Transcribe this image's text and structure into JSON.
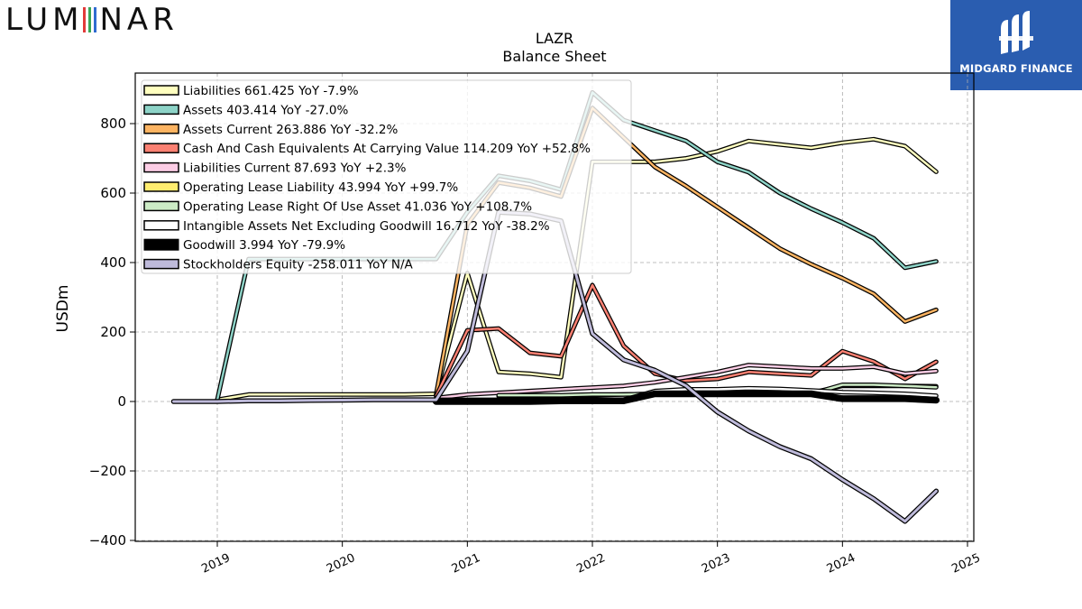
{
  "header": {
    "logo_left": "LUMINAR",
    "logo_right": "MIDGARD FINANCE"
  },
  "colors": {
    "logo_i": [
      "#e23a3a",
      "#3aa655",
      "#2f6bd0"
    ],
    "brand_bg": "#2a5db0"
  },
  "chart_data": {
    "type": "line",
    "title": "LAZR",
    "subtitle": "Balance  Sheet",
    "ylabel": "USDm",
    "xlabel": "",
    "ylim": [
      -400,
      920
    ],
    "xlim": [
      2018.6,
      2025.05
    ],
    "yticks": [
      -400,
      -200,
      0,
      200,
      400,
      600,
      800
    ],
    "ytick_labels": [
      "−400",
      "−200",
      "0",
      "200",
      "400",
      "600",
      "800"
    ],
    "xticks": [
      2019,
      2020,
      2021,
      2022,
      2023,
      2024,
      2025
    ],
    "xtick_labels": [
      "2019",
      "2020",
      "2021",
      "2022",
      "2023",
      "2024",
      "2025"
    ],
    "grid": true,
    "legend_position": "top-left",
    "series": [
      {
        "name": "Liabilities",
        "legend": "Liabilities  661.425 YoY -7.9%",
        "color": "#ffffbf",
        "width": 2.5,
        "x": [
          2019.0,
          2019.25,
          2019.5,
          2019.75,
          2020.0,
          2020.25,
          2020.5,
          2020.75,
          2021.0,
          2021.25,
          2021.5,
          2021.75,
          2022.0,
          2022.25,
          2022.5,
          2022.75,
          2023.0,
          2023.25,
          2023.5,
          2023.75,
          2024.0,
          2024.25,
          2024.5,
          2024.75
        ],
        "y": [
          5,
          20,
          20,
          20,
          20,
          20,
          20,
          22,
          370,
          85,
          80,
          70,
          690,
          690,
          690,
          700,
          720,
          750,
          740,
          730,
          745,
          755,
          735,
          661.425
        ]
      },
      {
        "name": "Assets",
        "legend": "Assets  403.414 YoY -27.0%",
        "color": "#8dd3c7",
        "width": 2.5,
        "x": [
          2019.0,
          2019.25,
          2019.5,
          2019.75,
          2020.0,
          2020.25,
          2020.5,
          2020.75,
          2021.0,
          2021.25,
          2021.5,
          2021.75,
          2022.0,
          2022.25,
          2022.5,
          2022.75,
          2023.0,
          2023.25,
          2023.5,
          2023.75,
          2024.0,
          2024.25,
          2024.5,
          2024.75
        ],
        "y": [
          5,
          410,
          410,
          410,
          410,
          410,
          410,
          410,
          545,
          650,
          635,
          610,
          890,
          810,
          780,
          750,
          690,
          660,
          600,
          555,
          515,
          470,
          385,
          403.414
        ]
      },
      {
        "name": "Assets Current",
        "legend": "Assets Current  263.886 YoY -32.2%",
        "color": "#fdb462",
        "width": 2.5,
        "x": [
          2020.75,
          2021.0,
          2021.25,
          2021.5,
          2021.75,
          2022.0,
          2022.25,
          2022.5,
          2022.75,
          2023.0,
          2023.25,
          2023.5,
          2023.75,
          2024.0,
          2024.25,
          2024.5,
          2024.75
        ],
        "y": [
          20,
          510,
          630,
          615,
          590,
          845,
          760,
          675,
          620,
          560,
          500,
          440,
          395,
          355,
          310,
          230,
          263.886
        ]
      },
      {
        "name": "Cash And Cash Equivalents At Carrying Value",
        "legend": "Cash And Cash Equivalents At Carrying Value  114.209 YoY +52.8%",
        "color": "#fb8072",
        "width": 2.5,
        "x": [
          2020.75,
          2021.0,
          2021.25,
          2021.5,
          2021.75,
          2022.0,
          2022.25,
          2022.5,
          2022.75,
          2023.0,
          2023.25,
          2023.5,
          2023.75,
          2024.0,
          2024.25,
          2024.5,
          2024.75
        ],
        "y": [
          15,
          205,
          210,
          140,
          130,
          335,
          160,
          80,
          60,
          65,
          85,
          80,
          75,
          145,
          115,
          65,
          114.209
        ]
      },
      {
        "name": "Liabilities Current",
        "legend": "Liabilities Current  87.693 YoY +2.3%",
        "color": "#fccde5",
        "width": 2.5,
        "x": [
          2020.75,
          2021.0,
          2021.25,
          2021.5,
          2021.75,
          2022.0,
          2022.25,
          2022.5,
          2022.75,
          2023.0,
          2023.25,
          2023.5,
          2023.75,
          2024.0,
          2024.25,
          2024.5,
          2024.75
        ],
        "y": [
          10,
          20,
          25,
          30,
          35,
          40,
          45,
          55,
          70,
          85,
          105,
          100,
          95,
          95,
          100,
          80,
          87.693
        ]
      },
      {
        "name": "Operating Lease Liability",
        "legend": "Operating Lease Liability  43.994 YoY +99.7%",
        "color": "#ffed6f",
        "width": 2.5,
        "x": [
          2021.25,
          2021.5,
          2021.75,
          2022.0,
          2022.25,
          2022.5,
          2022.75,
          2023.0,
          2023.25,
          2023.5,
          2023.75,
          2024.0,
          2024.25,
          2024.5,
          2024.75
        ],
        "y": [
          15,
          15,
          15,
          18,
          20,
          22,
          22,
          22,
          25,
          25,
          25,
          45,
          45,
          45,
          43.994
        ]
      },
      {
        "name": "Operating Lease Right Of Use Asset",
        "legend": "Operating Lease Right Of Use Asset  41.036 YoY +108.7%",
        "color": "#ccebc5",
        "width": 2.5,
        "x": [
          2021.25,
          2021.5,
          2021.75,
          2022.0,
          2022.25,
          2022.5,
          2022.75,
          2023.0,
          2023.25,
          2023.5,
          2023.75,
          2024.0,
          2024.25,
          2024.5,
          2024.75
        ],
        "y": [
          18,
          18,
          18,
          20,
          20,
          22,
          22,
          22,
          22,
          22,
          22,
          48,
          48,
          45,
          41.036
        ]
      },
      {
        "name": "Intangible Assets Net Excluding Goodwill",
        "legend": "Intangible Assets Net Excluding Goodwill  16.712 YoY -38.2%",
        "color": "#ffffff",
        "width": 2.5,
        "x": [
          2020.75,
          2021.0,
          2021.25,
          2021.5,
          2021.75,
          2022.0,
          2022.25,
          2022.5,
          2022.75,
          2023.0,
          2023.25,
          2023.5,
          2023.75,
          2024.0,
          2024.25,
          2024.5,
          2024.75
        ],
        "y": [
          5,
          5,
          5,
          5,
          5,
          5,
          5,
          30,
          35,
          35,
          38,
          36,
          32,
          27,
          25,
          22,
          16.712
        ]
      },
      {
        "name": "Goodwill",
        "legend": "Goodwill  3.994 YoY -79.9%",
        "color": "#000000",
        "width": 5,
        "x": [
          2020.75,
          2021.0,
          2021.25,
          2021.5,
          2021.75,
          2022.0,
          2022.25,
          2022.5,
          2022.75,
          2023.0,
          2023.25,
          2023.5,
          2023.75,
          2024.0,
          2024.25,
          2024.5,
          2024.75
        ],
        "y": [
          0,
          0,
          0,
          0,
          2,
          2,
          2,
          22,
          22,
          22,
          22,
          22,
          22,
          8,
          8,
          8,
          3.994
        ]
      },
      {
        "name": "Stockholders Equity",
        "legend": "Stockholders Equity  -258.011 YoY N/A",
        "color": "#bebada",
        "width": 3,
        "x": [
          2018.65,
          2019.0,
          2019.25,
          2019.5,
          2019.75,
          2020.0,
          2020.25,
          2020.5,
          2020.75,
          2021.0,
          2021.25,
          2021.5,
          2021.75,
          2022.0,
          2022.25,
          2022.5,
          2022.75,
          2023.0,
          2023.25,
          2023.5,
          2023.75,
          2024.0,
          2024.25,
          2024.5,
          2024.75
        ],
        "y": [
          0,
          0,
          2,
          2,
          3,
          4,
          5,
          5,
          5,
          145,
          545,
          540,
          520,
          195,
          120,
          90,
          45,
          -30,
          -85,
          -130,
          -165,
          -225,
          -280,
          -345,
          -258.011
        ]
      }
    ]
  }
}
